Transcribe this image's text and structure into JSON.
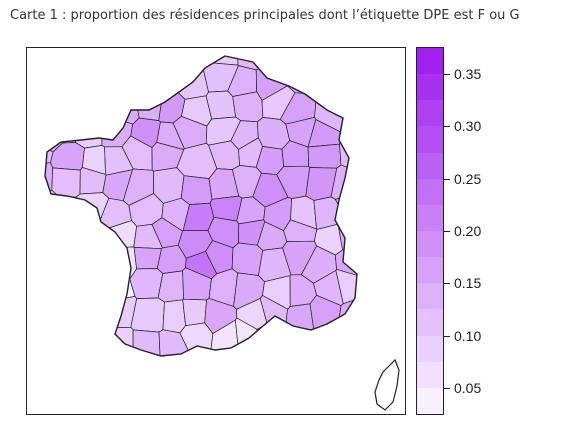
{
  "caption": "Carte 1 : proportion des résidences principales dont l’étiquette DPE est F ou G",
  "map": {
    "region": "France (départements)",
    "fill_low": "#f8f0ff",
    "fill_high": "#a020f0",
    "border_color": "#222222"
  },
  "legend": {
    "value_min": 0.025,
    "value_max": 0.375,
    "bands": 14,
    "ticks": [
      {
        "value": 0.35,
        "label": "0.35"
      },
      {
        "value": 0.3,
        "label": "0.30"
      },
      {
        "value": 0.25,
        "label": "0.25"
      },
      {
        "value": 0.2,
        "label": "0.20"
      },
      {
        "value": 0.15,
        "label": "0.15"
      },
      {
        "value": 0.1,
        "label": "0.10"
      },
      {
        "value": 0.05,
        "label": "0.05"
      }
    ]
  }
}
